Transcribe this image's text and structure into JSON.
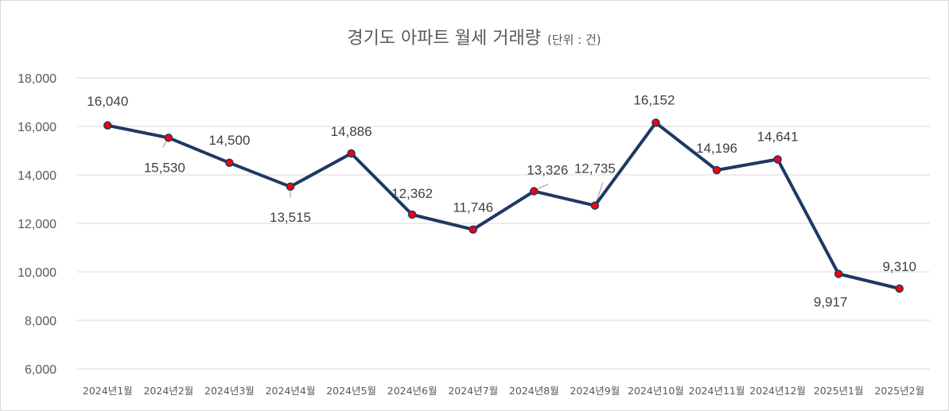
{
  "chart_data": {
    "type": "line",
    "title": "경기도 아파트 월세 거래량",
    "unit_note": "(단위 : 건)",
    "categories": [
      "2024년1월",
      "2024년2월",
      "2024년3월",
      "2024년4월",
      "2024년5월",
      "2024년6월",
      "2024년7월",
      "2024년8월",
      "2024년9월",
      "2024년10월",
      "2024년11월",
      "2024년12월",
      "2025년1월",
      "2025년2월"
    ],
    "values": [
      16040,
      15530,
      14500,
      13515,
      14886,
      12362,
      11746,
      13326,
      12735,
      16152,
      14196,
      14641,
      9917,
      9310
    ],
    "value_labels": [
      "16,040",
      "15,530",
      "14,500",
      "13,515",
      "14,886",
      "12,362",
      "11,746",
      "13,326",
      "12,735",
      "16,152",
      "14,196",
      "14,641",
      "9,917",
      "9,310"
    ],
    "ylim": [
      6000,
      18000
    ],
    "yticks": [
      6000,
      8000,
      10000,
      12000,
      14000,
      16000,
      18000
    ],
    "ytick_labels": [
      "6,000",
      "8,000",
      "10,000",
      "12,000",
      "14,000",
      "16,000",
      "18,000"
    ],
    "grid": true,
    "legend": "none",
    "colors": {
      "line": "#1f3864",
      "marker": "#ff0000",
      "grid": "#d9d9d9",
      "text": "#595959"
    }
  }
}
